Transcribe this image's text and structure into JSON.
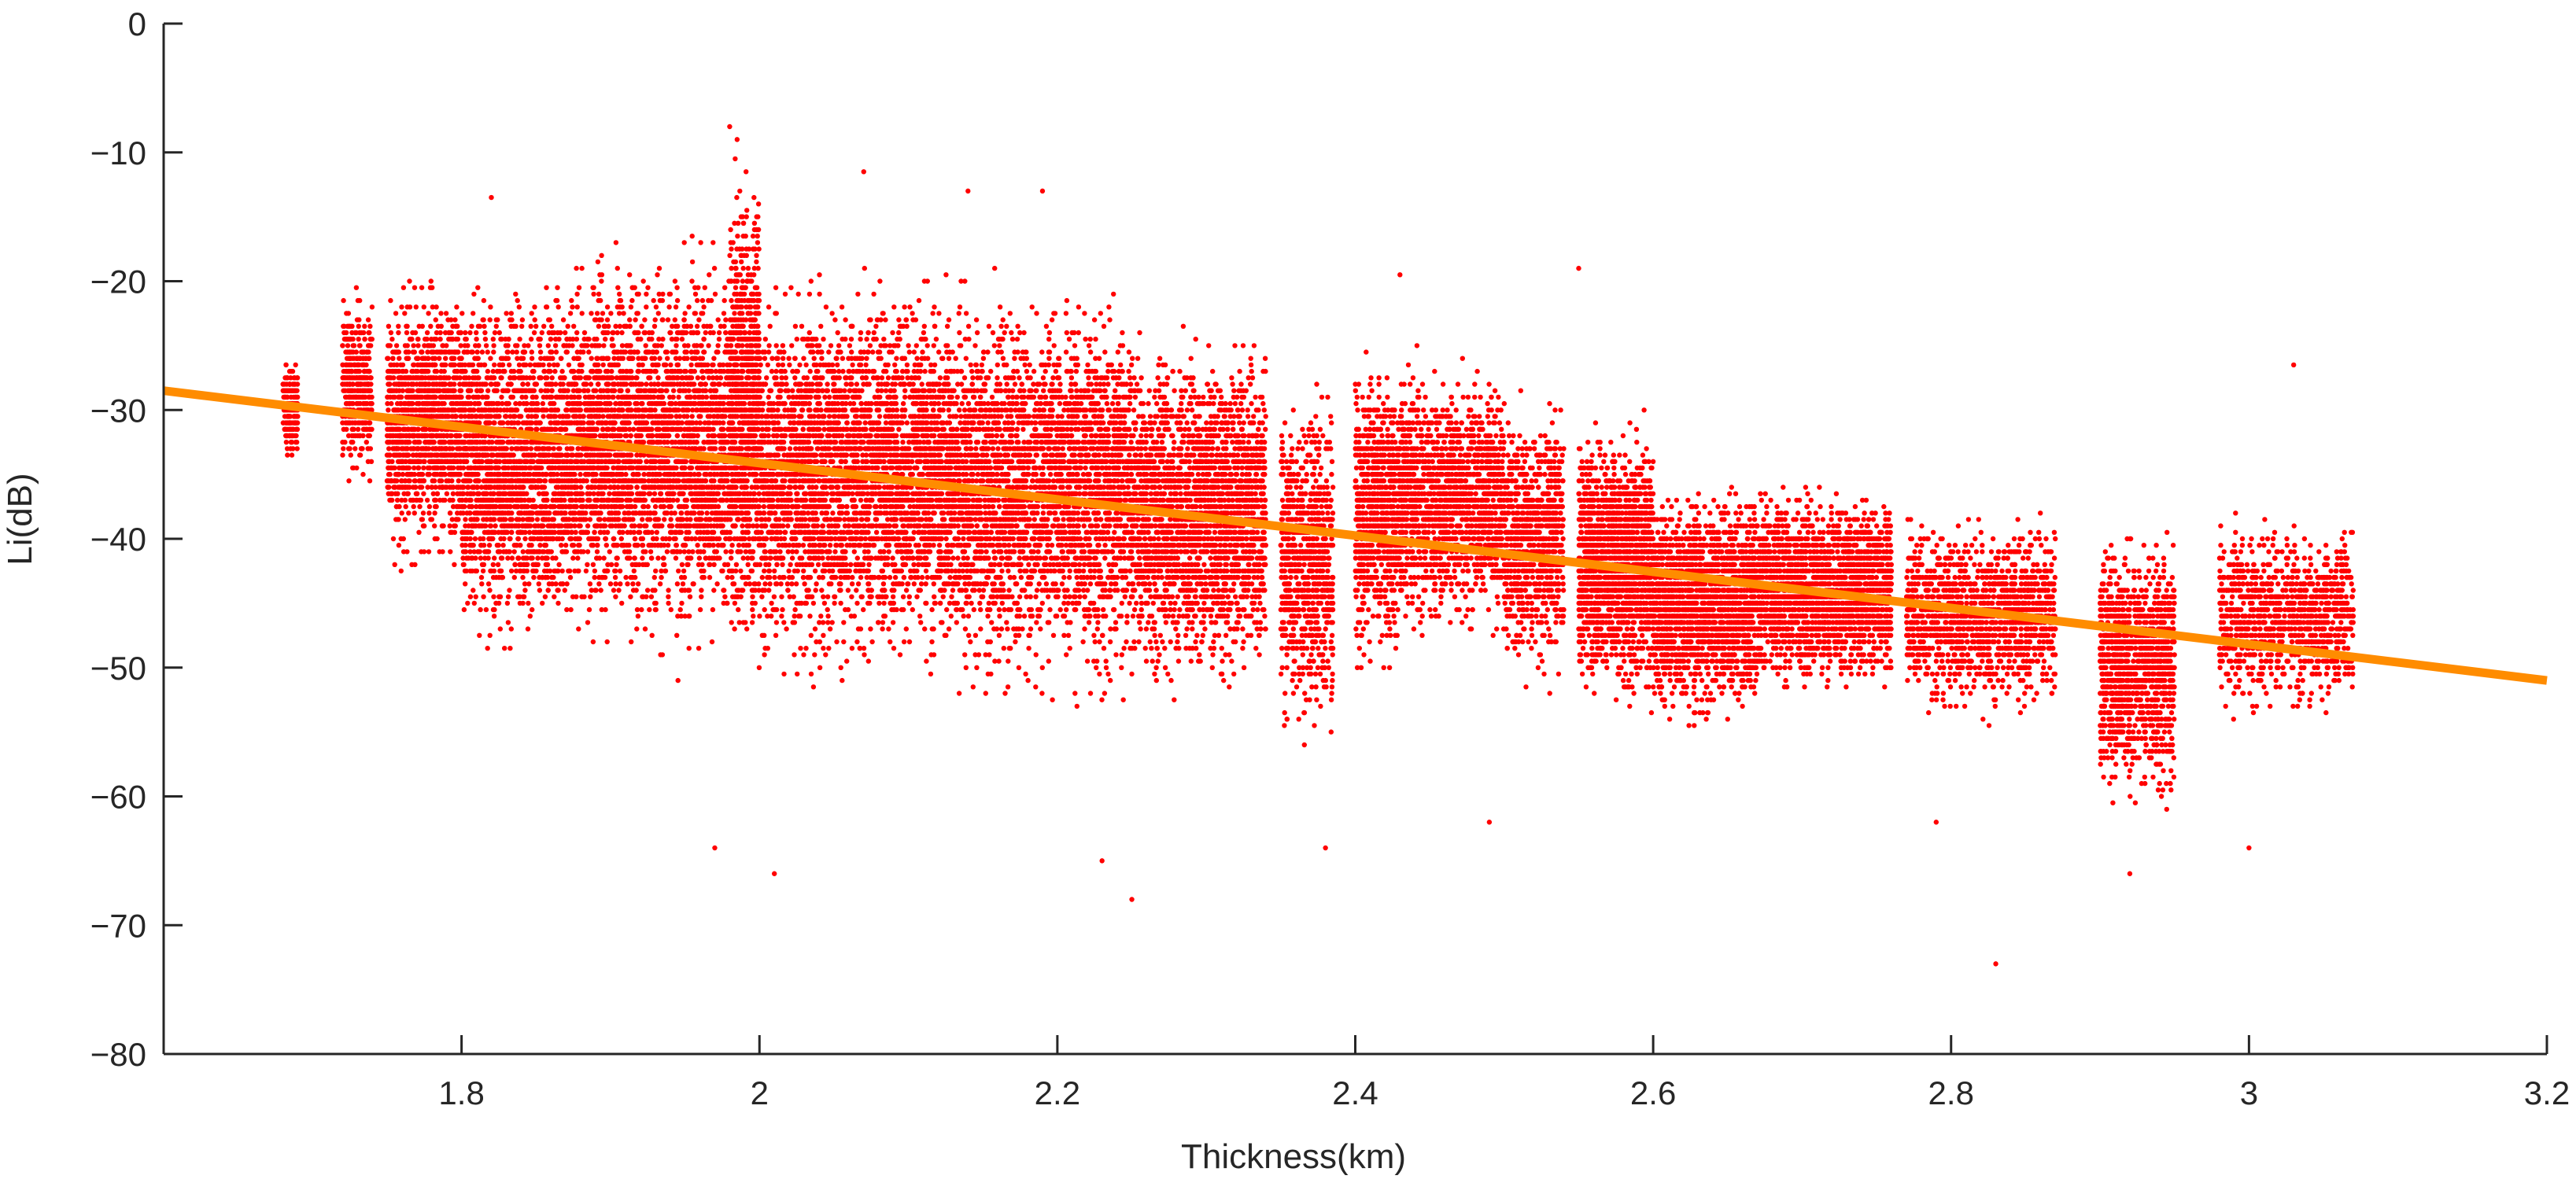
{
  "chart_data": {
    "type": "scatter",
    "title": "",
    "xlabel": "Thickness(km)",
    "ylabel": "Li(dB)",
    "xlim": [
      1.6,
      3.2
    ],
    "ylim": [
      -80,
      0
    ],
    "x_ticks": [
      "1.8",
      "2",
      "2.2",
      "2.4",
      "2.6",
      "2.8",
      "3",
      "3.2"
    ],
    "y_ticks": [
      "0",
      "−10",
      "−20",
      "−30",
      "−40",
      "−50",
      "−60",
      "−70",
      "−80"
    ],
    "grid": false,
    "legend": "none",
    "colors": {
      "points": "#ff0000",
      "fit": "#ff8c00",
      "axis": "#262626"
    },
    "series": [
      {
        "kind": "scatter-clusters",
        "note_values": "density clusters [x_start, x_end, y_center, y_spread, relative_density]",
        "clusters": [
          [
            1.68,
            1.69,
            -30,
            3,
            0.3
          ],
          [
            1.72,
            1.74,
            -28,
            5,
            0.6
          ],
          [
            1.75,
            1.8,
            -31,
            7,
            2.0
          ],
          [
            1.8,
            1.87,
            -34,
            9,
            3.0
          ],
          [
            1.87,
            1.98,
            -33,
            10,
            4.5
          ],
          [
            1.98,
            2.0,
            -30,
            12,
            1.5
          ],
          [
            2.0,
            2.13,
            -35,
            10,
            5.0
          ],
          [
            2.13,
            2.25,
            -36,
            10,
            4.5
          ],
          [
            2.25,
            2.34,
            -38,
            9,
            3.5
          ],
          [
            2.35,
            2.385,
            -42,
            9,
            1.2
          ],
          [
            2.4,
            2.43,
            -38,
            8,
            1.2
          ],
          [
            2.43,
            2.5,
            -37,
            7,
            2.2
          ],
          [
            2.5,
            2.54,
            -40,
            7,
            1.2
          ],
          [
            2.55,
            2.6,
            -42,
            7,
            2.5
          ],
          [
            2.6,
            2.67,
            -45,
            6,
            2.8
          ],
          [
            2.67,
            2.76,
            -44,
            5,
            3.0
          ],
          [
            2.77,
            2.87,
            -46,
            5,
            2.0
          ],
          [
            2.9,
            2.95,
            -50,
            7,
            1.8
          ],
          [
            2.98,
            3.07,
            -46,
            5,
            1.5
          ]
        ],
        "outliers": [
          [
            1.98,
            -8
          ],
          [
            1.985,
            -9
          ],
          [
            2.07,
            -11.5
          ],
          [
            2.14,
            -13
          ],
          [
            2.19,
            -13
          ],
          [
            2.25,
            -68
          ],
          [
            2.01,
            -66
          ],
          [
            2.23,
            -65
          ],
          [
            2.83,
            -73
          ],
          [
            2.92,
            -66
          ],
          [
            3.0,
            -64
          ],
          [
            1.97,
            -64
          ],
          [
            2.38,
            -64
          ],
          [
            2.49,
            -62
          ],
          [
            2.79,
            -62
          ],
          [
            3.03,
            -26.5
          ],
          [
            2.55,
            -19
          ],
          [
            2.43,
            -19.5
          ],
          [
            1.82,
            -13.5
          ]
        ]
      },
      {
        "name": "",
        "kind": "fit-line",
        "x": [
          1.6,
          3.2
        ],
        "y": [
          -28.5,
          -51
        ]
      }
    ]
  }
}
